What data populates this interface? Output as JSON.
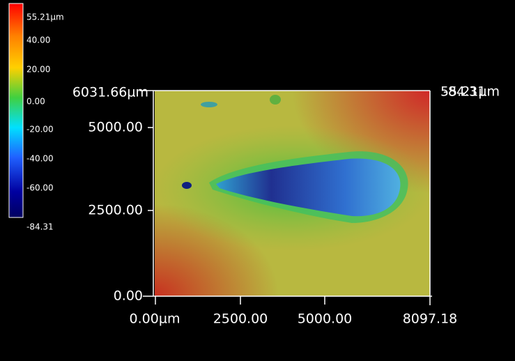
{
  "colorbar": {
    "labels": [
      "55.21µm",
      "40.00",
      "20.00",
      "0.00",
      "-20.00",
      "-40.00",
      "-60.00",
      "-84.31"
    ]
  },
  "y_axis": {
    "labels": [
      "6031.66µm",
      "5000.00",
      "2500.00",
      "0.00"
    ]
  },
  "x_axis": {
    "labels": [
      "0.00µm",
      "2500.00",
      "5000.00",
      "8097.18"
    ]
  },
  "z_axis": {
    "labels": [
      "55.21µm",
      "-84.31"
    ]
  }
}
